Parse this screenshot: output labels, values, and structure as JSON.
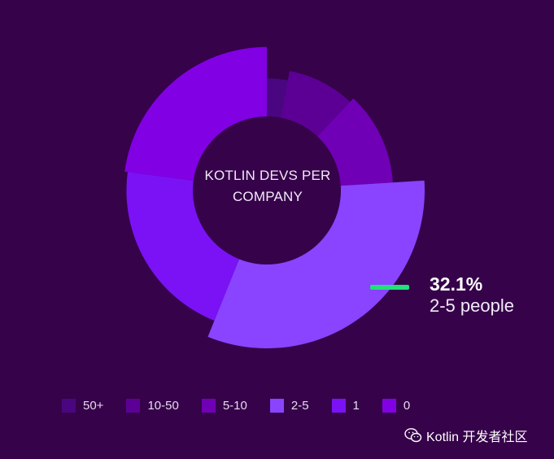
{
  "chart_data": {
    "type": "pie",
    "title": "KOTLIN DEVS PER COMPANY",
    "categories": [
      "50+",
      "10-50",
      "5-10",
      "2-5",
      "1",
      "0"
    ],
    "values": [
      3,
      9,
      12,
      32.1,
      21,
      22.9
    ],
    "colors": [
      "#4a0680",
      "#5c0095",
      "#6f00b6",
      "#8a43ff",
      "#7a12f5",
      "#8200e4"
    ],
    "highlight": {
      "category": "2-5",
      "value_text": "32.1%",
      "label": "2-5 people",
      "color": "#22e07a"
    },
    "legend_position": "bottom"
  },
  "watermark": {
    "text": "Kotlin 开发者社区",
    "icon": "wechat-icon"
  }
}
